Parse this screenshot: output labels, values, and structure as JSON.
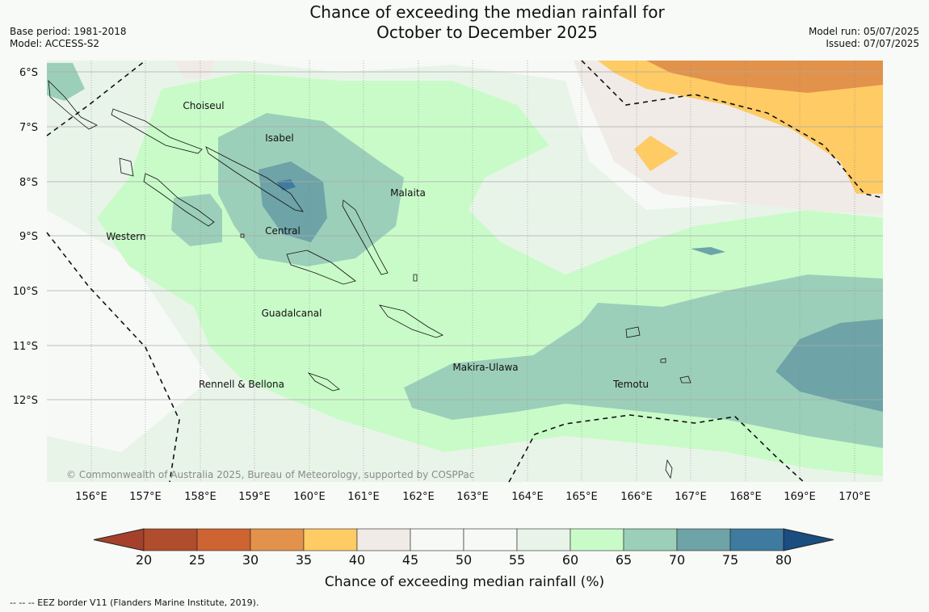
{
  "header": {
    "title": "Chance of exceeding the median rainfall for\nOctober to December 2025",
    "base_period": "Base period: 1981-2018",
    "model": "Model: ACCESS-S2",
    "model_run": "Model run: 05/07/2025",
    "issued": "Issued: 07/07/2025"
  },
  "map": {
    "lat_labels": [
      "6°S",
      "7°S",
      "8°S",
      "9°S",
      "10°S",
      "11°S",
      "12°S"
    ],
    "lon_labels": [
      "156°E",
      "157°E",
      "158°E",
      "159°E",
      "160°E",
      "161°E",
      "162°E",
      "163°E",
      "164°E",
      "165°E",
      "166°E",
      "167°E",
      "168°E",
      "169°E",
      "170°E"
    ],
    "provinces": [
      "Choiseul",
      "Isabel",
      "Malaita",
      "Western",
      "Central",
      "Guadalcanal",
      "Makira-Ulawa",
      "Rennell & Bellona",
      "Temotu"
    ],
    "copyright": "© Commonwealth of Australia 2025, Bureau of Meteorology, supported by COSPPac"
  },
  "colorbar": {
    "ticks": [
      "20",
      "25",
      "30",
      "35",
      "40",
      "45",
      "50",
      "55",
      "60",
      "65",
      "70",
      "75",
      "80"
    ],
    "colors": [
      "#a5412a",
      "#b04d2d",
      "#cd6431",
      "#e2924a",
      "#fecb65",
      "#f0ebe6",
      "#f7f9f6",
      "#f7f9f6",
      "#e9f4e9",
      "#c9fbc9",
      "#9ccfba",
      "#6ea3a7",
      "#3f7b9e",
      "#1a4d80"
    ],
    "label": "Chance of exceeding median rainfall (%)"
  },
  "footer": {
    "eez_note": "--  --  -- EEZ border V11 (Flanders Marine Institute, 2019)."
  }
}
